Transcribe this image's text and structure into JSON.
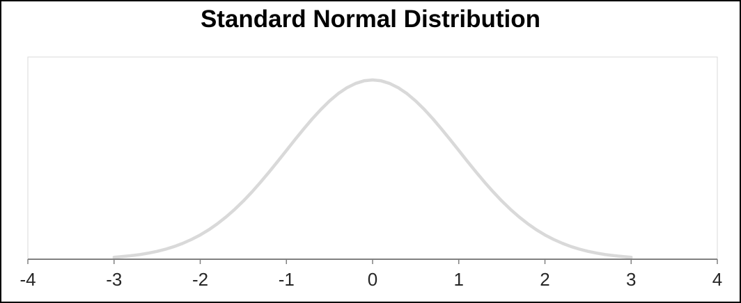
{
  "frame": {
    "background": "#ffffff",
    "border_color": "#000000"
  },
  "chart_data": {
    "type": "line",
    "title": "Standard Normal Distribution",
    "xlabel": "",
    "ylabel": "",
    "xlim": [
      -4,
      4
    ],
    "ylim": [
      0,
      0.45
    ],
    "x_ticks": [
      -4,
      -3,
      -2,
      -1,
      0,
      1,
      2,
      3,
      4
    ],
    "x_tick_labels": [
      "-4",
      "-3",
      "-2",
      "-1",
      "0",
      "1",
      "2",
      "3",
      "4"
    ],
    "grid": false,
    "legend": "none",
    "series": [
      {
        "x_start": -3,
        "x_step": 0.1,
        "x_end": 3,
        "y": [
          0.0044,
          0.006,
          0.0079,
          0.0104,
          0.0136,
          0.0175,
          0.0224,
          0.0283,
          0.0355,
          0.044,
          0.054,
          0.0656,
          0.079,
          0.094,
          0.1109,
          0.1295,
          0.1497,
          0.1714,
          0.1942,
          0.2179,
          0.242,
          0.2661,
          0.2897,
          0.3123,
          0.3332,
          0.3521,
          0.3683,
          0.3814,
          0.391,
          0.397,
          0.3989,
          0.397,
          0.391,
          0.3814,
          0.3683,
          0.3521,
          0.3332,
          0.3123,
          0.2897,
          0.2661,
          0.242,
          0.2179,
          0.1942,
          0.1714,
          0.1497,
          0.1295,
          0.1109,
          0.094,
          0.079,
          0.0656,
          0.054,
          0.044,
          0.0355,
          0.0283,
          0.0224,
          0.0175,
          0.0136,
          0.0104,
          0.0079,
          0.006,
          0.0044
        ],
        "color": "#d9d9d9",
        "stroke_width": 4.5
      }
    ],
    "styles": {
      "axis_color": "#808080",
      "tick_color": "#808080",
      "tick_label_color": "#262626",
      "tick_label_size": 26,
      "plot_border_color": "#d9d9d9",
      "title_color": "#000000"
    }
  }
}
